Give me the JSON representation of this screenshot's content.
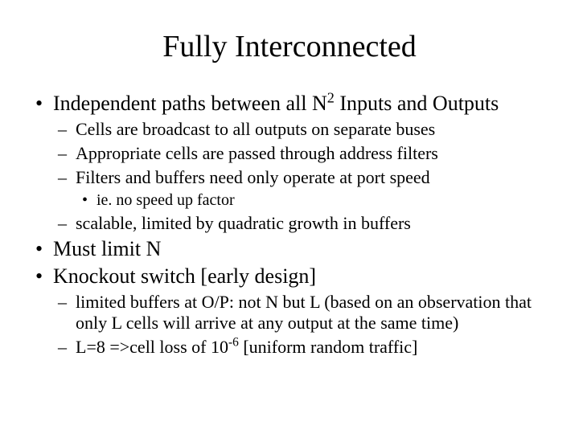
{
  "slide": {
    "title": "Fully Interconnected",
    "title_fontsize": 38,
    "body_fontsize_l1": 26,
    "body_fontsize_l2": 22,
    "body_fontsize_l3": 20,
    "background_color": "#ffffff",
    "text_color": "#000000",
    "font_family": "Times New Roman",
    "b1_pre": "Independent paths between all N",
    "b1_sup": "2",
    "b1_post": " Inputs and Outputs",
    "b1_s1": "Cells are broadcast to all outputs on separate buses",
    "b1_s2": "Appropriate cells are passed through address filters",
    "b1_s3": "Filters and buffers need only operate at port speed",
    "b1_s3_a": "ie. no speed up factor",
    "b1_s4": "scalable, limited by quadratic growth in buffers",
    "b2": "Must limit N",
    "b3": "Knockout switch [early design]",
    "b3_s1": "limited buffers at O/P: not N but L (based on an observation that only L cells will arrive at any output at the same time)",
    "b3_s2_pre": "L=8 =>cell loss of 10",
    "b3_s2_sup": "-6",
    "b3_s2_post": " [uniform random traffic]"
  }
}
